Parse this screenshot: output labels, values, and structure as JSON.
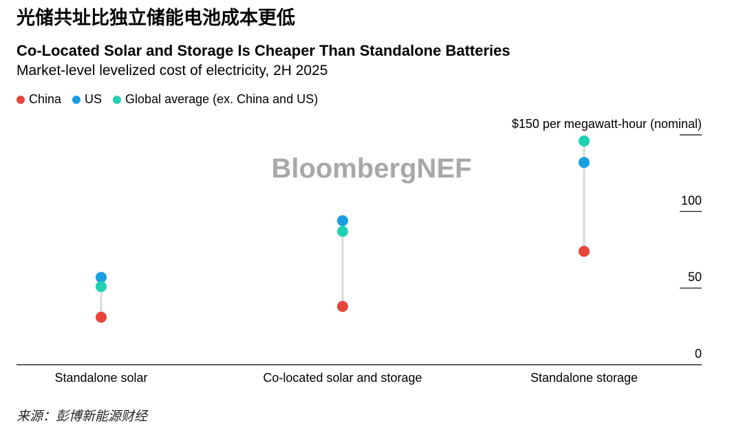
{
  "headline_cn": "光储共址比独立储能电池成本更低",
  "source": "来源：彭博新能源财经",
  "watermark": "BloombergNEF",
  "chart_data": {
    "type": "scatter",
    "title": "Co-Located Solar and Storage Is Cheaper Than Standalone Batteries",
    "subtitle": "Market-level levelized cost of electricity, 2H 2025",
    "ylabel": "$150 per megawatt-hour (nominal)",
    "ylim": [
      0,
      150
    ],
    "yticks": [
      0,
      50,
      100,
      150
    ],
    "ytick_labels": [
      "0",
      "50",
      "100",
      "$150 per megawatt-hour (nominal)"
    ],
    "categories": [
      "Standalone solar",
      "Co-located solar and storage",
      "Standalone storage"
    ],
    "legend_position": "top-left",
    "series": [
      {
        "name": "China",
        "color": "#e8453c",
        "values": [
          31,
          38,
          74
        ]
      },
      {
        "name": "US",
        "color": "#1a9ee0",
        "values": [
          57,
          94,
          132
        ]
      },
      {
        "name": "Global average (ex. China and US)",
        "color": "#1fd1b2",
        "values": [
          51,
          87,
          146
        ]
      }
    ]
  }
}
